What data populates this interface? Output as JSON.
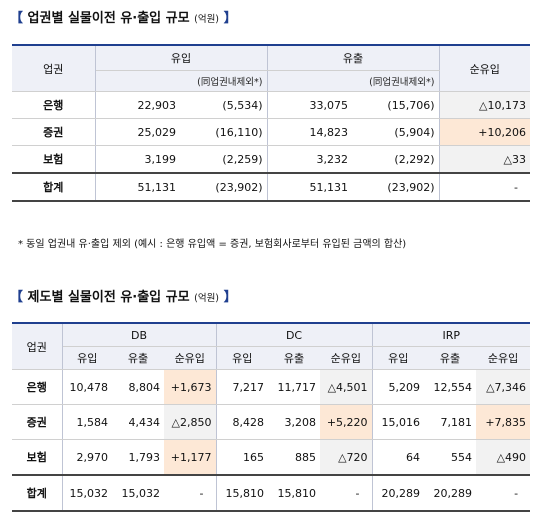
{
  "table1": {
    "title": "업권별 실물이전 유·출입 규모",
    "unit": "(억원)",
    "col_sector": "업권",
    "col_inflow": "유입",
    "col_outflow": "유출",
    "col_net": "순유입",
    "sub_note": "(同업권내제외*)",
    "rows": [
      {
        "label": "은행",
        "in": "22,903",
        "in_ex": "(5,534)",
        "out": "33,075",
        "out_ex": "(15,706)",
        "net": "△10,173"
      },
      {
        "label": "증권",
        "in": "25,029",
        "in_ex": "(16,110)",
        "out": "14,823",
        "out_ex": "(5,904)",
        "net": "+10,206"
      },
      {
        "label": "보험",
        "in": "3,199",
        "in_ex": "(2,259)",
        "out": "3,232",
        "out_ex": "(2,292)",
        "net": "△33"
      }
    ],
    "total": {
      "label": "합계",
      "in": "51,131",
      "in_ex": "(23,902)",
      "out": "51,131",
      "out_ex": "(23,902)",
      "net": "-"
    },
    "footnote": "* 동일 업권내 유·출입 제외 (예시 : 은행 유입액 = 증권, 보험회사로부터 유입된 금액의 합산)"
  },
  "table2": {
    "title": "제도별 실물이전 유·출입 규모",
    "unit": "(억원)",
    "col_sector": "업권",
    "groups": [
      "DB",
      "DC",
      "IRP"
    ],
    "sub_headers": [
      "유입",
      "유출",
      "순유입"
    ],
    "rows": [
      {
        "label": "은행",
        "vals": [
          "10,478",
          "8,804",
          "+1,673",
          "7,217",
          "11,717",
          "△4,501",
          "5,209",
          "12,554",
          "△7,346"
        ]
      },
      {
        "label": "증권",
        "vals": [
          "1,584",
          "4,434",
          "△2,850",
          "8,428",
          "3,208",
          "+5,220",
          "15,016",
          "7,181",
          "+7,835"
        ]
      },
      {
        "label": "보험",
        "vals": [
          "2,970",
          "1,793",
          "+1,177",
          "165",
          "885",
          "△720",
          "64",
          "554",
          "△490"
        ]
      }
    ],
    "total": {
      "label": "합계",
      "vals": [
        "15,032",
        "15,032",
        "-",
        "15,810",
        "15,810",
        "-",
        "20,289",
        "20,289",
        "-"
      ]
    }
  },
  "colors": {
    "accent": "#1f3f8f",
    "header_bg": "#eef0f7",
    "positive_bg": "#fde8d6",
    "negative_bg": "#f2f2f2"
  }
}
